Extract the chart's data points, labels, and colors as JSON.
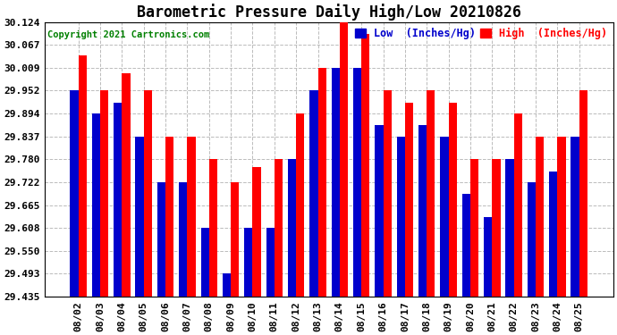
{
  "title": "Barometric Pressure Daily High/Low 20210826",
  "copyright": "Copyright 2021 Cartronics.com",
  "legend_low": "Low  (Inches/Hg)",
  "legend_high": "High  (Inches/Hg)",
  "dates": [
    "08/02",
    "08/03",
    "08/04",
    "08/05",
    "08/06",
    "08/07",
    "08/08",
    "08/09",
    "08/10",
    "08/11",
    "08/12",
    "08/13",
    "08/14",
    "08/15",
    "08/16",
    "08/17",
    "08/18",
    "08/19",
    "08/20",
    "08/21",
    "08/22",
    "08/23",
    "08/24",
    "08/25"
  ],
  "high_values": [
    30.04,
    29.952,
    29.995,
    29.952,
    29.837,
    29.837,
    29.78,
    29.722,
    29.76,
    29.78,
    29.895,
    30.009,
    30.124,
    30.095,
    29.952,
    29.922,
    29.952,
    29.922,
    29.78,
    29.78,
    29.895,
    29.837,
    29.837,
    29.952
  ],
  "low_values": [
    29.952,
    29.894,
    29.922,
    29.837,
    29.722,
    29.722,
    29.608,
    29.493,
    29.608,
    29.608,
    29.78,
    29.952,
    30.009,
    30.009,
    29.865,
    29.837,
    29.865,
    29.837,
    29.694,
    29.636,
    29.78,
    29.722,
    29.75,
    29.837
  ],
  "ylim_min": 29.435,
  "ylim_max": 30.124,
  "yticks": [
    29.435,
    29.493,
    29.55,
    29.608,
    29.665,
    29.722,
    29.78,
    29.837,
    29.894,
    29.952,
    30.009,
    30.067,
    30.124
  ],
  "bar_color_high": "#ff0000",
  "bar_color_low": "#0000cc",
  "background_color": "#ffffff",
  "grid_color": "#bbbbbb",
  "title_fontsize": 12,
  "copyright_fontsize": 7.5,
  "tick_fontsize": 8,
  "legend_fontsize": 8.5
}
